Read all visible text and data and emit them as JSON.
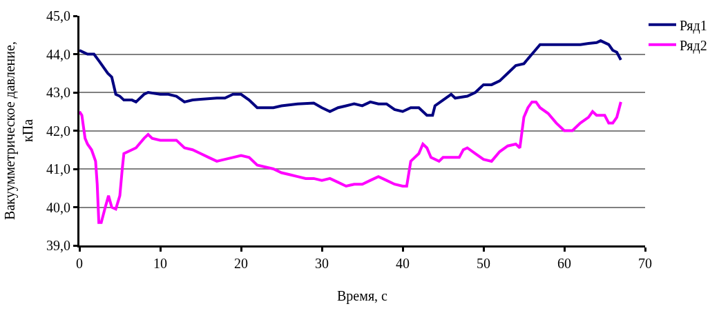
{
  "chart_data": {
    "type": "line",
    "xlabel": "Время, с",
    "ylabel": "Вакуумметрическое давление,\nкПа",
    "xlim": [
      0,
      70
    ],
    "xticks": [
      0,
      10,
      20,
      30,
      40,
      50,
      60,
      70
    ],
    "ylim": [
      39,
      45
    ],
    "yticks": [
      {
        "value": 39,
        "label": "39,0"
      },
      {
        "value": 40,
        "label": "40,0"
      },
      {
        "value": 41,
        "label": "41,0"
      },
      {
        "value": 42,
        "label": "42,0"
      },
      {
        "value": 43,
        "label": "43,0"
      },
      {
        "value": 44,
        "label": "44,0"
      },
      {
        "value": 45,
        "label": "45,0"
      }
    ],
    "grid": "y",
    "legend": "top right",
    "marker": "none",
    "line_style": "solid",
    "series": [
      {
        "name": "Ряд1",
        "color": "#000080",
        "x": [
          0,
          1,
          1.8,
          2.5,
          3.5,
          4,
          4.5,
          5,
          5.5,
          6.5,
          7,
          8,
          8.5,
          10,
          11,
          12,
          13,
          14,
          15,
          17,
          18,
          19,
          20,
          21,
          22,
          24,
          25,
          27,
          29,
          30,
          31,
          32,
          33,
          34,
          35,
          36,
          37,
          38,
          39,
          40,
          41,
          42,
          43,
          43.7,
          44,
          45,
          46,
          46.5,
          48,
          49,
          50,
          51,
          52,
          53,
          54,
          55,
          56,
          57,
          58,
          60,
          62,
          63,
          64,
          64.5,
          65.5,
          66,
          66.5,
          67
        ],
        "values": [
          44.1,
          44.0,
          44.0,
          43.8,
          43.5,
          43.4,
          42.95,
          42.9,
          42.8,
          42.8,
          42.75,
          42.95,
          43.0,
          42.95,
          42.95,
          42.9,
          42.75,
          42.8,
          42.82,
          42.85,
          42.85,
          42.95,
          42.95,
          42.8,
          42.6,
          42.6,
          42.65,
          42.7,
          42.72,
          42.6,
          42.5,
          42.6,
          42.65,
          42.7,
          42.65,
          42.75,
          42.7,
          42.7,
          42.55,
          42.5,
          42.6,
          42.6,
          42.4,
          42.4,
          42.65,
          42.8,
          42.95,
          42.85,
          42.9,
          43.0,
          43.2,
          43.2,
          43.3,
          43.5,
          43.7,
          43.75,
          44.0,
          44.25,
          44.25,
          44.25,
          44.25,
          44.28,
          44.3,
          44.35,
          44.25,
          44.1,
          44.05,
          43.85
        ]
      },
      {
        "name": "Ряд2",
        "color": "#ff00ff",
        "x": [
          0,
          0.3,
          0.7,
          1,
          1.5,
          2,
          2.2,
          2.4,
          2.7,
          3.2,
          3.6,
          4,
          4.5,
          5,
          5.3,
          5.5,
          6,
          6.5,
          7,
          8,
          8.5,
          9,
          10,
          11,
          12,
          13,
          14,
          15,
          16,
          17,
          18,
          19,
          20,
          21,
          22,
          23,
          24,
          25,
          26,
          27,
          28,
          29,
          30,
          31,
          32,
          33,
          34,
          35,
          36,
          37,
          38,
          39,
          40,
          40.5,
          41,
          42,
          42.5,
          43,
          43.5,
          44.5,
          45,
          47,
          47.5,
          48,
          49,
          50,
          51,
          52,
          53,
          54,
          54.5,
          55,
          55.5,
          56,
          56.5,
          57,
          58,
          59,
          60,
          61,
          62,
          63,
          63.5,
          64,
          65,
          65.5,
          66,
          66.5,
          67
        ],
        "values": [
          42.5,
          42.4,
          41.8,
          41.65,
          41.5,
          41.2,
          40.6,
          39.6,
          39.6,
          40.0,
          40.3,
          40.0,
          39.95,
          40.3,
          41.0,
          41.4,
          41.45,
          41.5,
          41.55,
          41.8,
          41.9,
          41.8,
          41.75,
          41.75,
          41.75,
          41.55,
          41.5,
          41.4,
          41.3,
          41.2,
          41.25,
          41.3,
          41.35,
          41.3,
          41.1,
          41.05,
          41.0,
          40.9,
          40.85,
          40.8,
          40.75,
          40.75,
          40.7,
          40.75,
          40.65,
          40.55,
          40.6,
          40.6,
          40.7,
          40.8,
          40.7,
          40.6,
          40.55,
          40.55,
          41.2,
          41.4,
          41.65,
          41.55,
          41.3,
          41.2,
          41.3,
          41.3,
          41.5,
          41.55,
          41.4,
          41.25,
          41.2,
          41.45,
          41.6,
          41.65,
          41.55,
          42.35,
          42.6,
          42.75,
          42.75,
          42.6,
          42.45,
          42.2,
          42.0,
          42.0,
          42.2,
          42.35,
          42.5,
          42.4,
          42.4,
          42.2,
          42.2,
          42.35,
          42.75
        ]
      }
    ]
  }
}
